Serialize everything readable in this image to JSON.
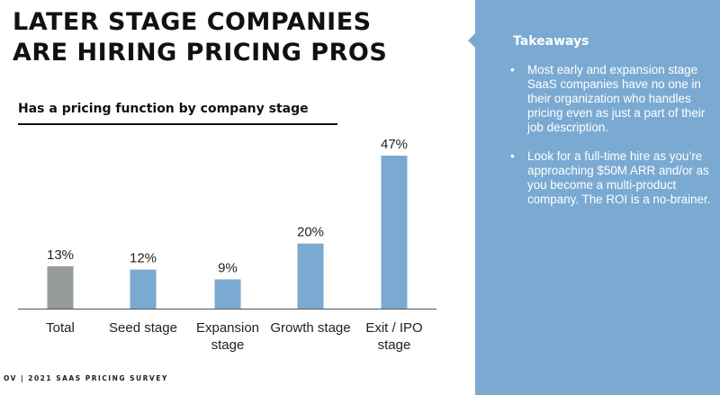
{
  "title": {
    "line1": "LATER STAGE COMPANIES",
    "line2": "ARE HIRING PRICING PROS"
  },
  "chart_data": {
    "type": "bar",
    "title": "Has a pricing function by company stage",
    "categories": [
      [
        "Total"
      ],
      [
        "Seed stage"
      ],
      [
        "Expansion",
        "stage"
      ],
      [
        "Growth stage"
      ],
      [
        "Exit / IPO",
        "stage"
      ]
    ],
    "values": [
      13,
      12,
      9,
      20,
      47
    ],
    "value_labels": [
      "13%",
      "12%",
      "9%",
      "20%",
      "47%"
    ],
    "unit": "%",
    "ylim": [
      0,
      50
    ],
    "bar_colors": [
      "#969b9b",
      "#7aaad2",
      "#7aaad2",
      "#7aaad2",
      "#7aaad2"
    ],
    "grid": false,
    "axis_color": "#555555"
  },
  "footer": {
    "logo": "OV",
    "text": "2021 SAAS PRICING SURVEY"
  },
  "sidebar": {
    "background": "#7aaad2",
    "title": "Takeaways",
    "bullet": "•",
    "items": [
      "Most early and expansion stage SaaS companies have no one in their organization who handles pricing even as just a part of their job description.",
      "Look for a full-time hire as you’re approaching $50M ARR and/or as you become a multi-product company. The ROI is a no-brainer."
    ]
  }
}
